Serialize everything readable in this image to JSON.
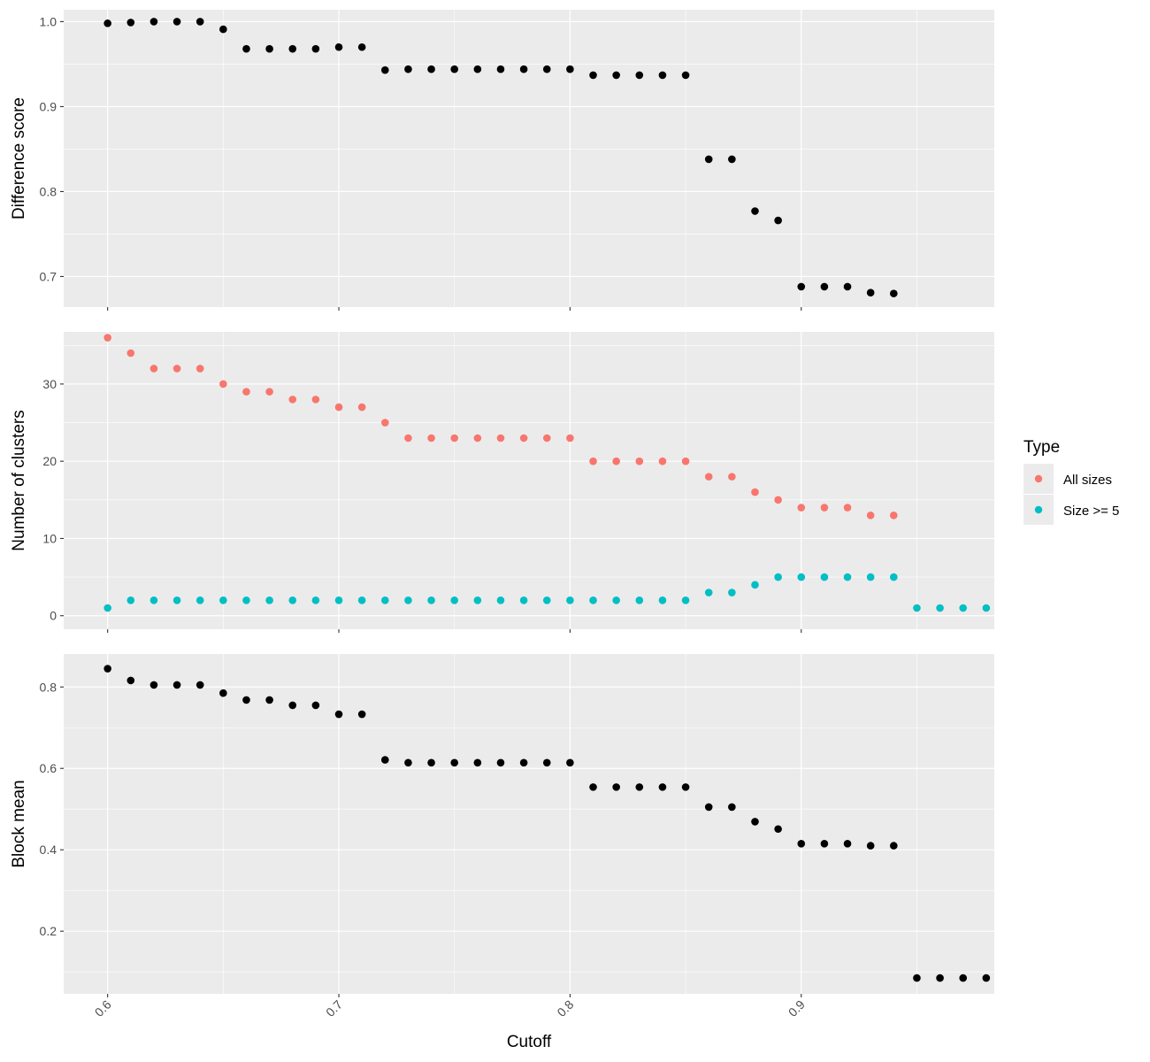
{
  "chart_data": {
    "type": "scatter",
    "xlabel": "Cutoff",
    "x_ticks": [
      "0.6",
      "0.7",
      "0.8",
      "0.9"
    ],
    "x_tick_values": [
      0.6,
      0.7,
      0.8,
      0.9
    ],
    "xlim": [
      0.581,
      0.9835
    ],
    "legend": {
      "title": "Type",
      "placement": "right",
      "entries": [
        {
          "label": "All sizes",
          "color": "#F8766D"
        },
        {
          "label": "Size >= 5",
          "color": "#00BFC4"
        }
      ]
    },
    "colors": {
      "panel_bg": "#EBEBEB",
      "grid": "#FFFFFF",
      "point": "#000000"
    },
    "panels": [
      {
        "id": "difference",
        "ylabel": "Difference score",
        "ylim": [
          0.664,
          1.014
        ],
        "y_ticks": [
          "0.7",
          "0.8",
          "0.9",
          "1.0"
        ],
        "y_tick_values": [
          0.7,
          0.8,
          0.9,
          1.0
        ],
        "series": [
          {
            "color": "#000000",
            "x": [
              0.6,
              0.61,
              0.62,
              0.63,
              0.64,
              0.65,
              0.66,
              0.67,
              0.68,
              0.69,
              0.7,
              0.71,
              0.72,
              0.73,
              0.74,
              0.75,
              0.76,
              0.77,
              0.78,
              0.79,
              0.8,
              0.81,
              0.82,
              0.83,
              0.84,
              0.85,
              0.86,
              0.87,
              0.88,
              0.89,
              0.9,
              0.91,
              0.92,
              0.93,
              0.94
            ],
            "y": [
              0.998,
              0.999,
              1.0,
              1.0,
              1.0,
              0.991,
              0.968,
              0.968,
              0.968,
              0.968,
              0.97,
              0.97,
              0.943,
              0.944,
              0.944,
              0.944,
              0.944,
              0.944,
              0.944,
              0.944,
              0.944,
              0.937,
              0.937,
              0.937,
              0.937,
              0.937,
              0.838,
              0.838,
              0.777,
              0.766,
              0.688,
              0.688,
              0.688,
              0.681,
              0.68
            ]
          }
        ]
      },
      {
        "id": "clusters",
        "ylabel": "Number of clusters",
        "ylim": [
          -1.75,
          36.75
        ],
        "y_ticks": [
          "0",
          "10",
          "20",
          "30"
        ],
        "y_tick_values": [
          0,
          10,
          20,
          30
        ],
        "series": [
          {
            "name": "All sizes",
            "color": "#F8766D",
            "x": [
              0.6,
              0.61,
              0.62,
              0.63,
              0.64,
              0.65,
              0.66,
              0.67,
              0.68,
              0.69,
              0.7,
              0.71,
              0.72,
              0.73,
              0.74,
              0.75,
              0.76,
              0.77,
              0.78,
              0.79,
              0.8,
              0.81,
              0.82,
              0.83,
              0.84,
              0.85,
              0.86,
              0.87,
              0.88,
              0.89,
              0.9,
              0.91,
              0.92,
              0.93,
              0.94
            ],
            "y": [
              36,
              34,
              32,
              32,
              32,
              30,
              29,
              29,
              28,
              28,
              27,
              27,
              25,
              23,
              23,
              23,
              23,
              23,
              23,
              23,
              23,
              20,
              20,
              20,
              20,
              20,
              18,
              18,
              16,
              15,
              14,
              14,
              14,
              13,
              13
            ]
          },
          {
            "name": "Size >= 5",
            "color": "#00BFC4",
            "x": [
              0.6,
              0.61,
              0.62,
              0.63,
              0.64,
              0.65,
              0.66,
              0.67,
              0.68,
              0.69,
              0.7,
              0.71,
              0.72,
              0.73,
              0.74,
              0.75,
              0.76,
              0.77,
              0.78,
              0.79,
              0.8,
              0.81,
              0.82,
              0.83,
              0.84,
              0.85,
              0.86,
              0.87,
              0.88,
              0.89,
              0.9,
              0.91,
              0.92,
              0.93,
              0.94,
              0.95,
              0.96,
              0.97,
              0.98
            ],
            "y": [
              1,
              2,
              2,
              2,
              2,
              2,
              2,
              2,
              2,
              2,
              2,
              2,
              2,
              2,
              2,
              2,
              2,
              2,
              2,
              2,
              2,
              2,
              2,
              2,
              2,
              2,
              3,
              3,
              4,
              5,
              5,
              5,
              5,
              5,
              5,
              1,
              1,
              1,
              1
            ]
          }
        ]
      },
      {
        "id": "block",
        "ylabel": "Block mean",
        "ylim": [
          0.046,
          0.881
        ],
        "y_ticks": [
          "0.2",
          "0.4",
          "0.6",
          "0.8"
        ],
        "y_tick_values": [
          0.2,
          0.4,
          0.6,
          0.8
        ],
        "series": [
          {
            "color": "#000000",
            "x": [
              0.6,
              0.61,
              0.62,
              0.63,
              0.64,
              0.65,
              0.66,
              0.67,
              0.68,
              0.69,
              0.7,
              0.71,
              0.72,
              0.73,
              0.74,
              0.75,
              0.76,
              0.77,
              0.78,
              0.79,
              0.8,
              0.81,
              0.82,
              0.83,
              0.84,
              0.85,
              0.86,
              0.87,
              0.88,
              0.89,
              0.9,
              0.91,
              0.92,
              0.93,
              0.94,
              0.95,
              0.96,
              0.97,
              0.98
            ],
            "y": [
              0.845,
              0.816,
              0.805,
              0.805,
              0.805,
              0.785,
              0.768,
              0.768,
              0.755,
              0.755,
              0.733,
              0.733,
              0.621,
              0.614,
              0.614,
              0.614,
              0.614,
              0.614,
              0.614,
              0.614,
              0.614,
              0.554,
              0.554,
              0.554,
              0.554,
              0.554,
              0.505,
              0.505,
              0.469,
              0.451,
              0.415,
              0.415,
              0.415,
              0.41,
              0.41,
              0.085,
              0.085,
              0.085,
              0.085
            ]
          }
        ]
      }
    ]
  }
}
